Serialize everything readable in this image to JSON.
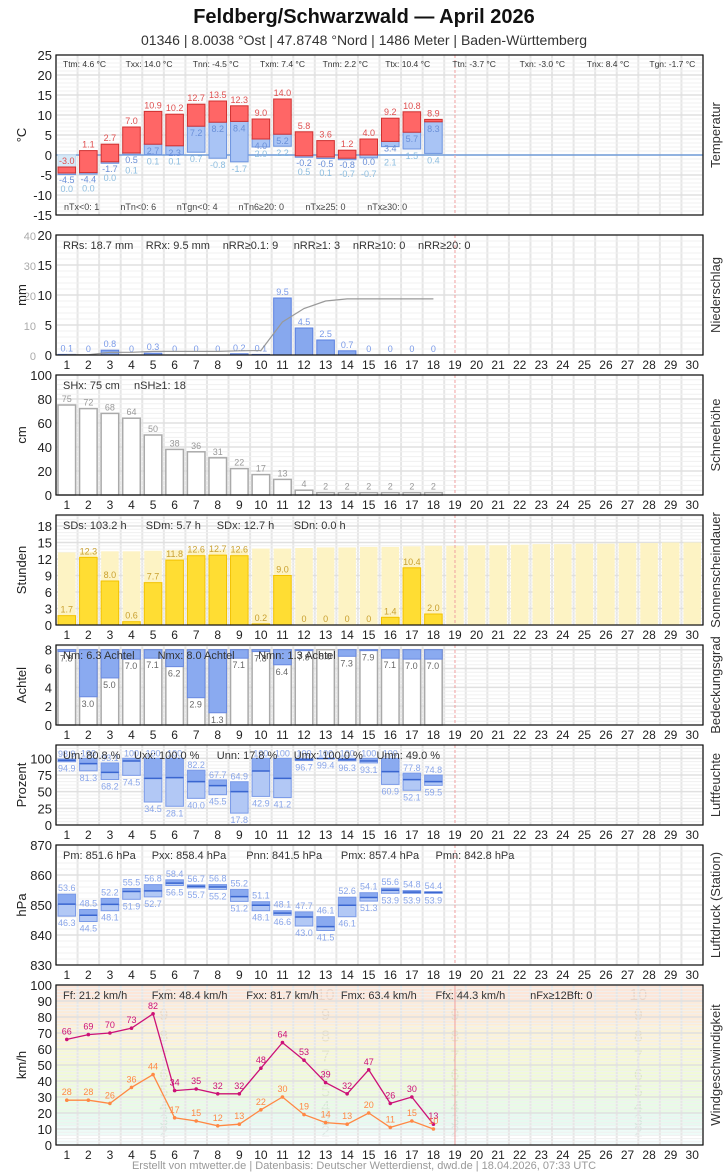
{
  "header": {
    "title": "Feldberg/Schwarzwald  —  April 2026",
    "subtitle": "01346  |  8.0038 °Ost  |  47.8748 °Nord  |  1486 Meter  |  Baden-Württemberg"
  },
  "footer": "Erstellt von mtwetter.de | Datenbasis: Deutscher Wetterdienst, dwd.de | 18.04.2026, 07:33 UTC",
  "colors": {
    "tmax": "#ff6666",
    "tmean": "#a9c4f5",
    "tmin": "#d6eaf8",
    "precip": "#87a8ee",
    "sun": "#ffdd33",
    "sun_possible": "#fdf3c4",
    "cloud": "#8aaaf0",
    "today_line": "#f0a0a0",
    "gust": "#cc1177",
    "wind": "#ff8844"
  },
  "chart_data": [
    {
      "type": "bar",
      "name": "Temperatur",
      "ylabel": "°C",
      "ylim": [
        -15,
        25
      ],
      "yticks": [
        25,
        20,
        15,
        10,
        5,
        0,
        -5,
        -10,
        -15
      ],
      "days": [
        1,
        2,
        3,
        4,
        5,
        6,
        7,
        8,
        9,
        10,
        11,
        12,
        13,
        14,
        15,
        16,
        17,
        18
      ],
      "series": [
        {
          "name": "Tx (max)",
          "values": [
            -3.0,
            1.1,
            2.7,
            7.0,
            10.9,
            10.2,
            12.7,
            13.5,
            12.3,
            9.0,
            14.0,
            5.8,
            3.6,
            1.2,
            4.0,
            9.2,
            10.8,
            8.9
          ]
        },
        {
          "name": "Tm (mean)",
          "values": [
            -4.5,
            -4.4,
            -1.7,
            0.5,
            2.7,
            2.3,
            7.2,
            8.2,
            8.4,
            4.0,
            5.2,
            -0.2,
            -0.5,
            -0.8,
            0.0,
            3.4,
            5.7,
            8.3
          ]
        },
        {
          "name": "Tn (min)",
          "values": [
            -4.5,
            -4.4,
            -1.7,
            0.1,
            0.1,
            0.1,
            0.7,
            -0.8,
            -1.7,
            2.0,
            2.2,
            -0.2,
            -0.5,
            -0.8,
            -0.7,
            2.1,
            1.5,
            0.4
          ]
        },
        {
          "name": "Tg (ground min)",
          "values": [
            0.0,
            0.0,
            0.0,
            0.1,
            0.1,
            0.1,
            0.7,
            -0.8,
            -1.7,
            2.0,
            2.2,
            0.5,
            0.1,
            -0.7,
            -0.7,
            2.1,
            1.5,
            0.4
          ]
        }
      ],
      "stats_top": [
        "Ttm: 4.6 °C",
        "Txx: 14.0 °C",
        "Tnn: -4.5 °C",
        "Txm: 7.4 °C",
        "Tnm: 2.2 °C",
        "Ttx: 10.4 °C",
        "Ttn: -3.7 °C",
        "Txn: -3.0 °C",
        "Tnx: 8.4 °C",
        "Tgn: -1.7 °C"
      ],
      "stats_bottom": [
        "nTx<0: 1",
        "nTn<0: 6",
        "nTgn<0: 4",
        "nTn6≥20: 0",
        "nTx≥25: 0",
        "nTx≥30: 0"
      ]
    },
    {
      "type": "bar",
      "name": "Niederschlag",
      "ylabel": "mm",
      "ylim": [
        0,
        20
      ],
      "yticks": [
        20,
        15,
        10,
        5,
        0
      ],
      "yticks_secondary": [
        40,
        30,
        20,
        10,
        0
      ],
      "days": [
        1,
        2,
        3,
        4,
        5,
        6,
        7,
        8,
        9,
        10,
        11,
        12,
        13,
        14,
        15,
        16,
        17,
        18
      ],
      "values": [
        0.1,
        0,
        0.8,
        0,
        0.3,
        0,
        0,
        0,
        0.2,
        0.1,
        9.5,
        4.5,
        2.5,
        0.7,
        0,
        0,
        0,
        0
      ],
      "cumulative": [
        0.1,
        0.1,
        0.9,
        0.9,
        1.2,
        1.2,
        1.2,
        1.2,
        1.4,
        1.5,
        11.0,
        15.5,
        18.0,
        18.7,
        18.7,
        18.7,
        18.7,
        18.7
      ],
      "stats_top": [
        "RRs: 18.7 mm",
        "RRx: 9.5 mm",
        "nRR≥0.1: 9",
        "nRR≥1: 3",
        "nRR≥10: 0",
        "nRR≥20: 0"
      ]
    },
    {
      "type": "bar",
      "name": "Schneehöhe",
      "ylabel": "cm",
      "ylim": [
        0,
        100
      ],
      "yticks": [
        100,
        80,
        60,
        40,
        20,
        0
      ],
      "days": [
        1,
        2,
        3,
        4,
        5,
        6,
        7,
        8,
        9,
        10,
        11,
        12,
        13,
        14,
        15,
        16,
        17,
        18
      ],
      "values": [
        75,
        72,
        68,
        64,
        50,
        38,
        36,
        31,
        22,
        17,
        13,
        4,
        2,
        2,
        2,
        2,
        2,
        2
      ],
      "stats_top": [
        "SHx: 75 cm",
        "nSH≥1: 18"
      ]
    },
    {
      "type": "bar",
      "name": "Sonnenscheindauer",
      "ylabel": "Stunden",
      "ylim": [
        0,
        20
      ],
      "yticks": [
        18,
        15,
        12,
        9,
        6,
        3,
        0
      ],
      "days": [
        1,
        2,
        3,
        4,
        5,
        6,
        7,
        8,
        9,
        10,
        11,
        12,
        13,
        14,
        15,
        16,
        17,
        18
      ],
      "values": [
        1.7,
        12.3,
        8.0,
        0.6,
        7.7,
        11.8,
        12.6,
        12.7,
        12.6,
        0.2,
        9.0,
        0,
        0,
        0,
        0,
        1.4,
        10.4,
        2.0
      ],
      "possible": [
        13.2,
        13.3,
        13.4,
        13.4,
        13.5,
        13.6,
        13.7,
        13.7,
        13.8,
        13.9,
        13.9,
        14.0,
        14.1,
        14.1,
        14.2,
        14.2,
        14.3,
        14.4,
        14.4,
        14.5,
        14.5,
        14.6,
        14.7,
        14.7,
        14.8,
        14.8,
        14.9,
        14.9,
        15.0,
        15.0
      ],
      "stats_top": [
        "SDs: 103.2 h",
        "SDm: 5.7 h",
        "SDx: 12.7 h",
        "SDn: 0.0 h"
      ]
    },
    {
      "type": "bar",
      "name": "Bedeckungsgrad",
      "ylabel": "Achtel",
      "ylim": [
        0,
        8.5
      ],
      "yticks": [
        8,
        6,
        4,
        2,
        0
      ],
      "days": [
        1,
        2,
        3,
        4,
        5,
        6,
        7,
        8,
        9,
        10,
        11,
        12,
        13,
        14,
        15,
        16,
        17,
        18
      ],
      "values": [
        7.8,
        3.0,
        5.0,
        7.0,
        7.1,
        6.2,
        2.9,
        1.3,
        7.1,
        7.8,
        6.4,
        7.9,
        8.0,
        7.3,
        7.9,
        7.1,
        7.0,
        7.0
      ],
      "stats_top": [
        "Nm: 6.3 Achtel",
        "Nmx: 8.0 Achtel",
        "Nmn: 1.3 Achtel"
      ]
    },
    {
      "type": "bar",
      "name": "Luftfeuchte",
      "ylabel": "Prozent",
      "ylim": [
        0,
        120
      ],
      "yticks": [
        100,
        75,
        50,
        25,
        0
      ],
      "days": [
        1,
        2,
        3,
        4,
        5,
        6,
        7,
        8,
        9,
        10,
        11,
        12,
        13,
        14,
        15,
        16,
        17,
        18
      ],
      "series": [
        {
          "name": "max",
          "values": [
            98.9,
            100,
            93.1,
            100,
            100,
            100,
            82.2,
            67.7,
            64.9,
            100,
            100,
            100,
            100,
            100,
            100,
            100,
            77.8,
            74.8
          ]
        },
        {
          "name": "mean",
          "values": [
            97,
            92,
            79,
            96,
            70,
            71,
            65,
            59,
            50,
            81,
            70,
            98,
            99.7,
            98,
            96,
            80,
            68,
            65
          ]
        },
        {
          "name": "min",
          "values": [
            94.9,
            81.3,
            68.2,
            74.5,
            34.5,
            28.1,
            40.0,
            45.5,
            17.8,
            42.9,
            41.2,
            96.7,
            99.4,
            96.3,
            93.1,
            60.9,
            52.1,
            59.5
          ]
        }
      ],
      "stats_top": [
        "Um: 80.8 %",
        "Uxx: 100.0 %",
        "Unn: 17.8 %",
        "Umx: 100.0 %",
        "Umn: 49.0 %"
      ]
    },
    {
      "type": "bar",
      "name": "Luftdruck (Station)",
      "ylabel": "hPa",
      "ylim": [
        830,
        870
      ],
      "yticks": [
        870,
        860,
        850,
        840,
        830
      ],
      "days": [
        1,
        2,
        3,
        4,
        5,
        6,
        7,
        8,
        9,
        10,
        11,
        12,
        13,
        14,
        15,
        16,
        17,
        18
      ],
      "series": [
        {
          "name": "max",
          "values": [
            853.6,
            848.5,
            852.2,
            855.5,
            856.8,
            858.4,
            856.7,
            856.8,
            855.2,
            851.1,
            848.1,
            847.7,
            846.1,
            852.6,
            854.1,
            855.6,
            854.8,
            854.4
          ]
        },
        {
          "name": "mean",
          "values": [
            850.3,
            846.6,
            850.2,
            854.5,
            854.7,
            857.3,
            856.2,
            856.0,
            852.8,
            849.9,
            847.3,
            846.0,
            842.8,
            849.9,
            852.5,
            854.9,
            854.3,
            854.2
          ]
        },
        {
          "name": "min",
          "values": [
            846.3,
            844.5,
            848.1,
            851.9,
            852.7,
            856.5,
            855.7,
            855.2,
            851.2,
            848.1,
            846.6,
            843.0,
            841.5,
            846.1,
            851.3,
            853.9,
            853.9,
            853.9
          ]
        }
      ],
      "stats_top": [
        "Pm: 851.6 hPa",
        "Pxx: 858.4 hPa",
        "Pnn: 841.5 hPa",
        "Pmx: 857.4 hPa",
        "Pmn: 842.8 hPa"
      ]
    },
    {
      "type": "line",
      "name": "Windgeschwindigkeit",
      "ylabel": "km/h",
      "ylim": [
        0,
        100
      ],
      "yticks": [
        100,
        90,
        80,
        70,
        60,
        50,
        40,
        30,
        20,
        10,
        0
      ],
      "days": [
        1,
        2,
        3,
        4,
        5,
        6,
        7,
        8,
        9,
        10,
        11,
        12,
        13,
        14,
        15,
        16,
        17,
        18
      ],
      "series": [
        {
          "name": "Fx (gust max)",
          "values": [
            66,
            69,
            70,
            73,
            82,
            34,
            35,
            32,
            32,
            48,
            64,
            53,
            39,
            32,
            47,
            26,
            30,
            13
          ]
        },
        {
          "name": "Fm (mean)",
          "values": [
            28,
            28,
            26,
            36,
            44,
            17,
            15,
            12,
            13,
            22,
            30,
            19,
            14,
            13,
            20,
            11,
            15,
            10
          ]
        }
      ],
      "beaufort_bands": [
        {
          "bft": 2,
          "from": 6,
          "to": 12,
          "color": "#eefcf8"
        },
        {
          "bft": 3,
          "from": 12,
          "to": 20,
          "color": "#e6faf0"
        },
        {
          "bft": 4,
          "from": 20,
          "to": 29,
          "color": "#e8fbe6"
        },
        {
          "bft": 5,
          "from": 29,
          "to": 39,
          "color": "#eefbdc"
        },
        {
          "bft": 6,
          "from": 39,
          "to": 50,
          "color": "#f1fad8"
        },
        {
          "bft": 7,
          "from": 50,
          "to": 62,
          "color": "#f6f8d6"
        },
        {
          "bft": 8,
          "from": 62,
          "to": 75,
          "color": "#fbf2d8"
        },
        {
          "bft": 9,
          "from": 75,
          "to": 89,
          "color": "#fcebd8"
        },
        {
          "bft": 10,
          "from": 89,
          "to": 103,
          "color": "#fde6d8"
        }
      ],
      "bft_label_columns": [
        5.5,
        13,
        19,
        27.5
      ],
      "stats_top": [
        "Ff: 21.2 km/h",
        "Fxm: 48.4 km/h",
        "Fxx: 81.7 km/h",
        "Fmx: 63.4 km/h",
        "Ffx: 44.3 km/h",
        "nFx≥12Bft: 0"
      ]
    }
  ],
  "x_axis": {
    "days": [
      1,
      2,
      3,
      4,
      5,
      6,
      7,
      8,
      9,
      10,
      11,
      12,
      13,
      14,
      15,
      16,
      17,
      18,
      19,
      20,
      21,
      22,
      23,
      24,
      25,
      26,
      27,
      28,
      29,
      30
    ],
    "today_marker": 18.5
  }
}
